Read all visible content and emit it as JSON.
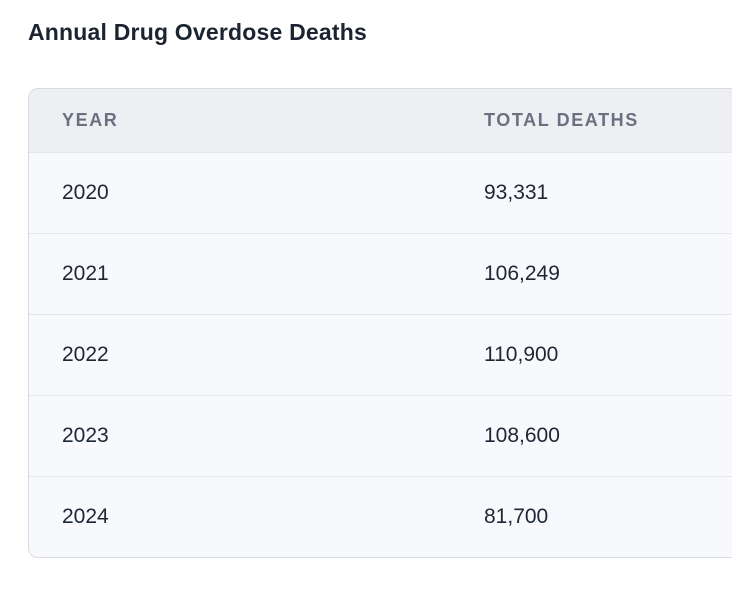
{
  "page": {
    "title": "Annual Drug Overdose Deaths"
  },
  "table": {
    "headers": {
      "year": "YEAR",
      "deaths": "TOTAL DEATHS"
    },
    "rows": [
      {
        "year": "2020",
        "deaths": "93,331"
      },
      {
        "year": "2021",
        "deaths": "106,249"
      },
      {
        "year": "2022",
        "deaths": "110,900"
      },
      {
        "year": "2023",
        "deaths": "108,600"
      },
      {
        "year": "2024",
        "deaths": "81,700"
      }
    ]
  },
  "colors": {
    "title_text": "#1b2430",
    "header_bg": "#edeff3",
    "header_text": "#697180",
    "row_bg": "#f7f9fc",
    "cell_text": "#1e2733",
    "border": "#d7dbe1",
    "row_divider": "#e2e5ea",
    "page_bg": "#ffffff"
  },
  "chart_data": {
    "type": "table",
    "title": "Annual Drug Overdose Deaths",
    "columns": [
      "YEAR",
      "TOTAL DEATHS"
    ],
    "categories": [
      "2020",
      "2021",
      "2022",
      "2023",
      "2024"
    ],
    "values": [
      93331,
      106249,
      110900,
      108600,
      81700
    ],
    "rows": [
      [
        "2020",
        "93,331"
      ],
      [
        "2021",
        "106,249"
      ],
      [
        "2022",
        "110,900"
      ],
      [
        "2023",
        "108,600"
      ],
      [
        "2024",
        "81,700"
      ]
    ],
    "xlabel": "Year",
    "ylabel": "Total Deaths",
    "legend": "none",
    "grid": "off"
  }
}
